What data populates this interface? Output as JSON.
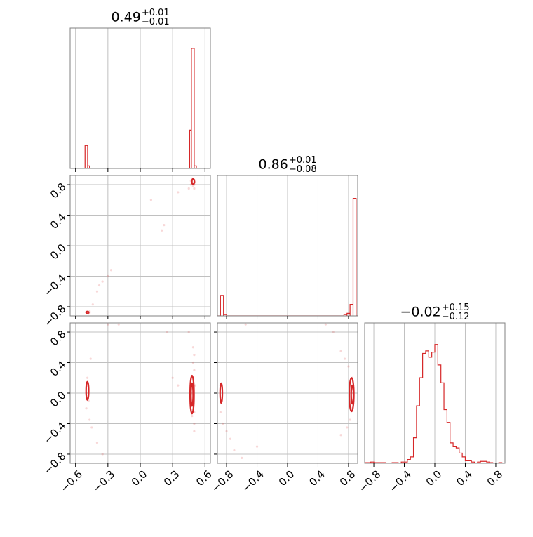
{
  "colors": {
    "accent": "#d62728",
    "grid": "#c0c0c0",
    "frame": "#808080"
  },
  "chart_data": {
    "type": "corner",
    "parameters": [
      {
        "title": {
          "value": "0.49",
          "plus": "+0.01",
          "minus": "−0.01"
        },
        "range": [
          -0.65,
          0.65
        ],
        "ticks": [
          "−0.6",
          "−0.3",
          "0.0",
          "0.3",
          "0.6"
        ],
        "tick_values": [
          -0.6,
          -0.3,
          0.0,
          0.3,
          0.6
        ]
      },
      {
        "title": {
          "value": "0.86",
          "plus": "+0.01",
          "minus": "−0.08"
        },
        "range": [
          -0.92,
          0.92
        ],
        "ticks": [
          "−0.8",
          "−0.4",
          "0.0",
          "0.4",
          "0.8"
        ],
        "tick_values": [
          -0.8,
          -0.4,
          0.0,
          0.4,
          0.8
        ]
      },
      {
        "title": {
          "value": "−0.02",
          "plus": "+0.15",
          "minus": "−0.12"
        },
        "range": [
          -0.92,
          0.92
        ],
        "ticks": [
          "−0.8",
          "−0.4",
          "0.0",
          "0.4",
          "0.8"
        ],
        "tick_values": [
          -0.8,
          -0.4,
          0.0,
          0.4,
          0.8
        ]
      }
    ],
    "histograms": [
      {
        "param": 0,
        "bins": [
          [
            -0.512,
            -0.488,
            0.18
          ],
          [
            -0.488,
            -0.47,
            0.02
          ],
          [
            0.458,
            0.474,
            0.3
          ],
          [
            0.474,
            0.5,
            0.94
          ],
          [
            0.5,
            0.52,
            0.02
          ]
        ]
      },
      {
        "param": 1,
        "bins": [
          [
            -0.88,
            -0.84,
            0.16
          ],
          [
            -0.84,
            -0.8,
            0.01
          ],
          [
            0.74,
            0.78,
            0.01
          ],
          [
            0.78,
            0.82,
            0.02
          ],
          [
            0.82,
            0.86,
            0.09
          ],
          [
            0.86,
            0.9,
            0.92
          ]
        ]
      },
      {
        "param": 2,
        "x": [
          -0.92,
          -0.88,
          -0.84,
          -0.8,
          -0.76,
          -0.72,
          -0.68,
          -0.64,
          -0.6,
          -0.56,
          -0.52,
          -0.48,
          -0.44,
          -0.4,
          -0.36,
          -0.32,
          -0.28,
          -0.24,
          -0.2,
          -0.16,
          -0.12,
          -0.08,
          -0.04,
          0.0,
          0.04,
          0.08,
          0.12,
          0.16,
          0.2,
          0.24,
          0.28,
          0.32,
          0.36,
          0.4,
          0.44,
          0.48,
          0.52,
          0.56,
          0.6,
          0.64,
          0.68,
          0.72,
          0.76,
          0.8,
          0.84,
          0.88
        ],
        "counts": [
          0.005,
          0.005,
          0.01,
          0.005,
          0.005,
          0.005,
          0.005,
          0.0,
          0.0,
          0.005,
          0.005,
          0.0,
          0.01,
          0.01,
          0.03,
          0.05,
          0.2,
          0.45,
          0.67,
          0.86,
          0.88,
          0.83,
          0.87,
          0.93,
          0.77,
          0.63,
          0.42,
          0.32,
          0.16,
          0.13,
          0.12,
          0.08,
          0.05,
          0.02,
          0.02,
          0.01,
          0.0,
          0.01,
          0.015,
          0.015,
          0.01,
          0.005,
          0.0,
          0.0,
          0.005,
          0.0
        ]
      }
    ],
    "scatter": [
      {
        "x_param": 0,
        "y_param": 1,
        "points": [
          [
            -0.48,
            -0.87
          ],
          [
            -0.49,
            -0.88
          ],
          [
            -0.47,
            -0.86
          ],
          [
            -0.48,
            -0.89
          ],
          [
            -0.5,
            -0.87
          ],
          [
            -0.47,
            -0.88
          ],
          [
            -0.49,
            -0.86
          ],
          [
            -0.44,
            -0.77
          ],
          [
            -0.4,
            -0.6
          ],
          [
            -0.35,
            -0.47
          ],
          [
            -0.3,
            -0.4
          ],
          [
            -0.27,
            -0.32
          ],
          [
            -0.38,
            -0.52
          ],
          [
            0.1,
            0.6
          ],
          [
            0.2,
            0.2
          ],
          [
            0.22,
            0.27
          ],
          [
            0.35,
            0.7
          ],
          [
            0.45,
            0.75
          ],
          [
            0.48,
            0.84
          ],
          [
            0.49,
            0.82
          ],
          [
            0.5,
            0.86
          ],
          [
            0.47,
            0.85
          ],
          [
            0.5,
            0.8
          ],
          [
            0.49,
            0.78
          ],
          [
            0.51,
            0.83
          ],
          [
            0.48,
            0.88
          ],
          [
            0.5,
            0.75
          ],
          [
            0.47,
            0.8
          ]
        ],
        "contours": [
          {
            "x": -0.49,
            "y": -0.875,
            "rx": 0.012,
            "ry": 0.012
          },
          {
            "x": 0.49,
            "y": 0.84,
            "rx": 0.012,
            "ry": 0.035
          }
        ]
      },
      {
        "x_param": 0,
        "y_param": 2,
        "points": [
          [
            -0.49,
            0.1
          ],
          [
            -0.5,
            0.0
          ],
          [
            -0.48,
            -0.1
          ],
          [
            -0.5,
            -0.2
          ],
          [
            -0.49,
            0.2
          ],
          [
            -0.46,
            0.45
          ],
          [
            -0.47,
            -0.35
          ],
          [
            -0.45,
            -0.45
          ],
          [
            -0.4,
            -0.65
          ],
          [
            -0.35,
            -0.8
          ],
          [
            -0.3,
            0.9
          ],
          [
            -0.2,
            0.9
          ],
          [
            0.25,
            0.8
          ],
          [
            0.45,
            0.8
          ],
          [
            0.5,
            0.5
          ],
          [
            0.49,
            0.4
          ],
          [
            0.5,
            0.3
          ],
          [
            0.48,
            -0.3
          ],
          [
            0.5,
            -0.4
          ],
          [
            0.49,
            -0.15
          ],
          [
            0.51,
            0.1
          ],
          [
            0.48,
            0.0
          ],
          [
            0.5,
            -0.25
          ],
          [
            0.49,
            0.6
          ],
          [
            0.5,
            -0.5
          ],
          [
            0.3,
            0.2
          ],
          [
            0.35,
            0.1
          ]
        ],
        "contours": [
          {
            "x": -0.49,
            "y": 0.03,
            "rx": 0.012,
            "ry": 0.12
          },
          {
            "x": 0.48,
            "y": -0.02,
            "rx": 0.018,
            "ry": 0.25
          },
          {
            "x": 0.48,
            "y": -0.02,
            "rx": 0.01,
            "ry": 0.15
          }
        ]
      },
      {
        "x_param": 1,
        "y_param": 2,
        "points": [
          [
            -0.88,
            0.1
          ],
          [
            -0.87,
            -0.1
          ],
          [
            -0.88,
            -0.25
          ],
          [
            -0.85,
            -0.4
          ],
          [
            -0.8,
            -0.5
          ],
          [
            -0.75,
            -0.6
          ],
          [
            -0.7,
            -0.75
          ],
          [
            -0.6,
            -0.85
          ],
          [
            -0.55,
            0.9
          ],
          [
            -0.4,
            -0.7
          ],
          [
            0.5,
            0.9
          ],
          [
            0.7,
            0.55
          ],
          [
            0.75,
            0.45
          ],
          [
            0.8,
            0.35
          ],
          [
            0.85,
            0.2
          ],
          [
            0.86,
            0.0
          ],
          [
            0.85,
            -0.2
          ],
          [
            0.82,
            -0.35
          ],
          [
            0.78,
            -0.45
          ],
          [
            0.7,
            -0.55
          ],
          [
            0.6,
            0.8
          ],
          [
            0.84,
            0.1
          ],
          [
            0.83,
            -0.1
          ]
        ],
        "contours": [
          {
            "x": -0.87,
            "y": 0.0,
            "rx": 0.015,
            "ry": 0.13
          },
          {
            "x": 0.84,
            "y": -0.02,
            "rx": 0.03,
            "ry": 0.22
          },
          {
            "x": 0.85,
            "y": -0.02,
            "rx": 0.015,
            "ry": 0.12
          }
        ]
      }
    ]
  }
}
